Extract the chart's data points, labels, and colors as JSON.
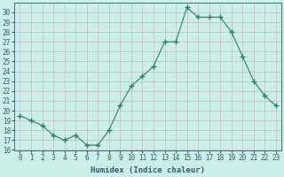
{
  "x": [
    0,
    1,
    2,
    3,
    4,
    5,
    6,
    7,
    8,
    9,
    10,
    11,
    12,
    13,
    14,
    15,
    16,
    17,
    18,
    19,
    20,
    21,
    22,
    23
  ],
  "y": [
    19.5,
    19.0,
    18.5,
    17.5,
    17.0,
    17.5,
    16.5,
    16.5,
    18.0,
    20.5,
    22.5,
    23.5,
    24.5,
    27.0,
    27.0,
    30.5,
    29.5,
    29.5,
    29.5,
    28.0,
    25.5,
    23.0,
    21.5,
    20.5
  ],
  "line_color": "#2e7d6e",
  "marker": "+",
  "marker_size": 4,
  "bg_color": "#cceee8",
  "grid_color": "#c8b8c8",
  "xlabel": "Humidex (Indice chaleur)",
  "ylim": [
    16,
    31
  ],
  "xlim": [
    -0.5,
    23.5
  ],
  "yticks": [
    16,
    17,
    18,
    19,
    20,
    21,
    22,
    23,
    24,
    25,
    26,
    27,
    28,
    29,
    30
  ],
  "xticks": [
    0,
    1,
    2,
    3,
    4,
    5,
    6,
    7,
    8,
    9,
    10,
    11,
    12,
    13,
    14,
    15,
    16,
    17,
    18,
    19,
    20,
    21,
    22,
    23
  ],
  "font_color": "#2e5d6e",
  "label_fontsize": 6.5,
  "tick_fontsize": 5.5
}
